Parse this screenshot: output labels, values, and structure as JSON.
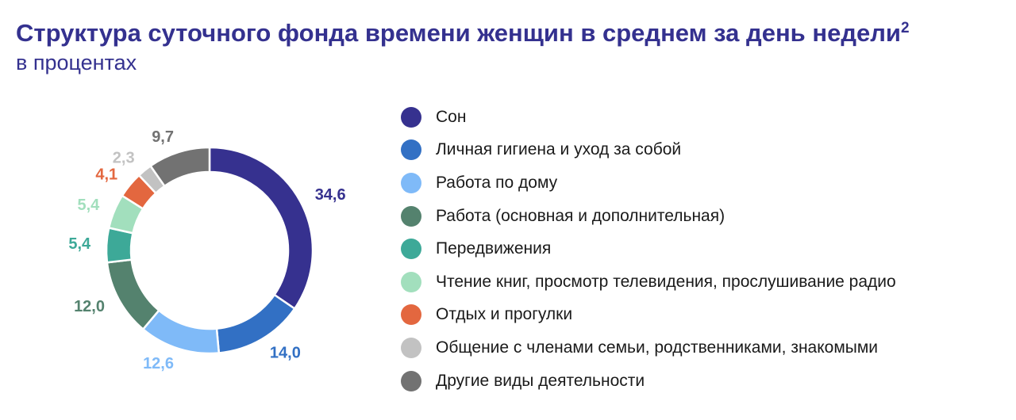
{
  "title": "Структура суточного фонда времени женщин в среднем за день недели",
  "title_footnote": "2",
  "subtitle": "в процентах",
  "chart_data": {
    "type": "pie",
    "variant": "donut",
    "unit": "percent",
    "legend_position": "right",
    "series": [
      {
        "name": "Сон",
        "value": 34.6,
        "label": "34,6",
        "color": "#36318f"
      },
      {
        "name": "Личная гигиена и уход за собой",
        "value": 14.0,
        "label": "14,0",
        "color": "#3270c4"
      },
      {
        "name": "Работа по дому",
        "value": 12.6,
        "label": "12,6",
        "color": "#7fbaf8"
      },
      {
        "name": "Работа (основная и дополнительная)",
        "value": 12.0,
        "label": "12,0",
        "color": "#54826e"
      },
      {
        "name": "Передвижения",
        "value": 5.4,
        "label": "5,4",
        "color": "#3da998"
      },
      {
        "name": "Чтение книг, просмотр телевидения, прослушивание радио",
        "value": 5.4,
        "label": "5,4",
        "color": "#a2dfbd"
      },
      {
        "name": "Отдых и прогулки",
        "value": 4.1,
        "label": "4,1",
        "color": "#e3673f"
      },
      {
        "name": "Общение с членами семьи, родственниками, знакомыми",
        "value": 2.3,
        "label": "2,3",
        "color": "#c2c2c2"
      },
      {
        "name": "Другие виды деятельности",
        "value": 9.7,
        "label": "9,7",
        "color": "#727272"
      }
    ]
  }
}
